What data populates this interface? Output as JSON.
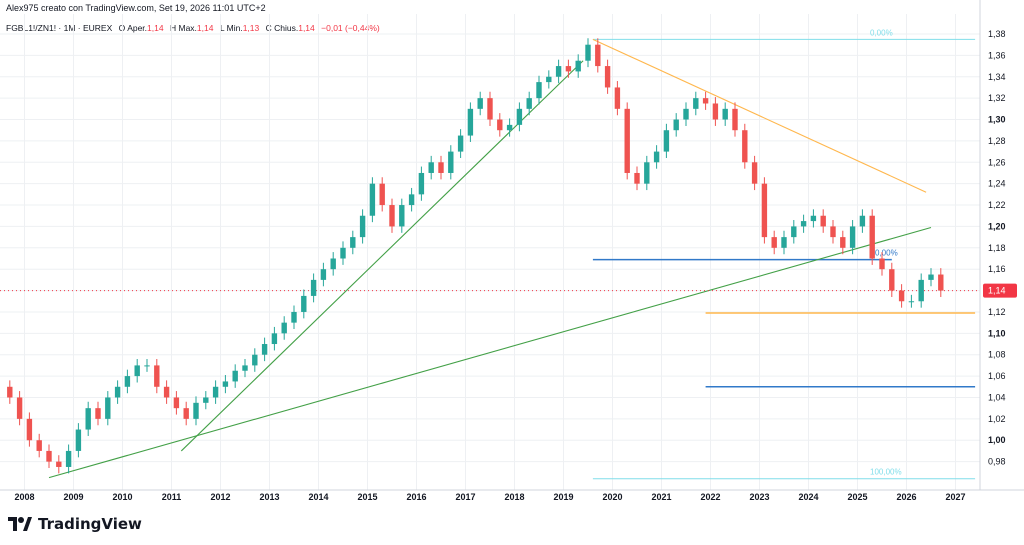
{
  "header": {
    "caption": "Alex975 creato con TradingView.com, Set 19, 2026 11:01 UTC+2"
  },
  "symbol": {
    "name": "FGBL1!/ZN1! · 1M · EUREX",
    "open_label": "O",
    "open_text": "Aper.",
    "open_value": "1,14",
    "high_label": "H",
    "high_text": "Max.",
    "high_value": "1,14",
    "low_label": "L",
    "low_text": "Min.",
    "low_value": "1,13",
    "close_label": "C",
    "close_text": "Chius.",
    "close_value": "1,14",
    "change": "−0,01 (−0,44%)"
  },
  "logo": {
    "text": "TradingView"
  },
  "colors": {
    "up": "#26a69a",
    "down": "#ef5350",
    "fib_top": "#80deea",
    "level": "#3179c9",
    "orange": "#ffb74d",
    "green": "#43a047",
    "price_tag": "#f23645",
    "grid": "#eef0f3"
  },
  "chart_data": {
    "type": "candlestick",
    "ylim": [
      0.96,
      1.38
    ],
    "y_ticks": [
      "1,38",
      "1,36",
      "1,34",
      "1,32",
      "1,30",
      "1,28",
      "1,26",
      "1,24",
      "1,22",
      "1,20",
      "1,18",
      "1,16",
      "1,14",
      "1,12",
      "1,10",
      "1,08",
      "1,06",
      "1,04",
      "1,02",
      "1,00",
      "0,98"
    ],
    "y_tick_values": [
      1.38,
      1.36,
      1.34,
      1.32,
      1.3,
      1.28,
      1.26,
      1.24,
      1.22,
      1.2,
      1.18,
      1.16,
      1.14,
      1.12,
      1.1,
      1.08,
      1.06,
      1.04,
      1.02,
      1.0,
      0.98
    ],
    "x_ticks": [
      "2008",
      "2009",
      "2010",
      "2011",
      "2012",
      "2013",
      "2014",
      "2015",
      "2016",
      "2017",
      "2018",
      "2019",
      "2020",
      "2021",
      "2022",
      "2023",
      "2024",
      "2025",
      "2026",
      "2027"
    ],
    "x_range": [
      2007.5,
      2027.5
    ],
    "last_price": "1,14",
    "last_value": 1.14,
    "series_close": [
      [
        2007.5,
        1.05
      ],
      [
        2007.7,
        1.04
      ],
      [
        2007.9,
        1.02
      ],
      [
        2008.1,
        1.0
      ],
      [
        2008.3,
        0.99
      ],
      [
        2008.5,
        0.98
      ],
      [
        2008.7,
        0.975
      ],
      [
        2008.9,
        0.99
      ],
      [
        2009.1,
        1.01
      ],
      [
        2009.3,
        1.03
      ],
      [
        2009.5,
        1.02
      ],
      [
        2009.7,
        1.04
      ],
      [
        2009.9,
        1.05
      ],
      [
        2010.1,
        1.06
      ],
      [
        2010.3,
        1.07
      ],
      [
        2010.5,
        1.07
      ],
      [
        2010.7,
        1.05
      ],
      [
        2010.9,
        1.04
      ],
      [
        2011.1,
        1.03
      ],
      [
        2011.3,
        1.02
      ],
      [
        2011.5,
        1.035
      ],
      [
        2011.7,
        1.04
      ],
      [
        2011.9,
        1.05
      ],
      [
        2012.1,
        1.055
      ],
      [
        2012.3,
        1.065
      ],
      [
        2012.5,
        1.07
      ],
      [
        2012.7,
        1.08
      ],
      [
        2012.9,
        1.09
      ],
      [
        2013.1,
        1.1
      ],
      [
        2013.3,
        1.11
      ],
      [
        2013.5,
        1.12
      ],
      [
        2013.7,
        1.135
      ],
      [
        2013.9,
        1.15
      ],
      [
        2014.1,
        1.16
      ],
      [
        2014.3,
        1.17
      ],
      [
        2014.5,
        1.18
      ],
      [
        2014.7,
        1.19
      ],
      [
        2014.9,
        1.21
      ],
      [
        2015.1,
        1.24
      ],
      [
        2015.3,
        1.22
      ],
      [
        2015.5,
        1.2
      ],
      [
        2015.7,
        1.22
      ],
      [
        2015.9,
        1.23
      ],
      [
        2016.1,
        1.25
      ],
      [
        2016.3,
        1.26
      ],
      [
        2016.5,
        1.25
      ],
      [
        2016.7,
        1.27
      ],
      [
        2016.9,
        1.285
      ],
      [
        2017.1,
        1.31
      ],
      [
        2017.3,
        1.32
      ],
      [
        2017.5,
        1.3
      ],
      [
        2017.7,
        1.29
      ],
      [
        2017.9,
        1.295
      ],
      [
        2018.1,
        1.31
      ],
      [
        2018.3,
        1.32
      ],
      [
        2018.5,
        1.335
      ],
      [
        2018.7,
        1.34
      ],
      [
        2018.9,
        1.35
      ],
      [
        2019.1,
        1.345
      ],
      [
        2019.3,
        1.355
      ],
      [
        2019.5,
        1.37
      ],
      [
        2019.7,
        1.35
      ],
      [
        2019.9,
        1.33
      ],
      [
        2020.1,
        1.31
      ],
      [
        2020.3,
        1.25
      ],
      [
        2020.5,
        1.24
      ],
      [
        2020.7,
        1.26
      ],
      [
        2020.9,
        1.27
      ],
      [
        2021.1,
        1.29
      ],
      [
        2021.3,
        1.3
      ],
      [
        2021.5,
        1.31
      ],
      [
        2021.7,
        1.32
      ],
      [
        2021.9,
        1.315
      ],
      [
        2022.1,
        1.3
      ],
      [
        2022.3,
        1.31
      ],
      [
        2022.5,
        1.29
      ],
      [
        2022.7,
        1.26
      ],
      [
        2022.9,
        1.24
      ],
      [
        2023.1,
        1.19
      ],
      [
        2023.3,
        1.18
      ],
      [
        2023.5,
        1.19
      ],
      [
        2023.7,
        1.2
      ],
      [
        2023.9,
        1.205
      ],
      [
        2024.1,
        1.21
      ],
      [
        2024.3,
        1.2
      ],
      [
        2024.5,
        1.19
      ],
      [
        2024.7,
        1.18
      ],
      [
        2024.9,
        1.2
      ],
      [
        2025.1,
        1.21
      ],
      [
        2025.3,
        1.17
      ],
      [
        2025.5,
        1.16
      ],
      [
        2025.7,
        1.14
      ],
      [
        2025.9,
        1.13
      ],
      [
        2026.1,
        1.13
      ],
      [
        2026.3,
        1.15
      ],
      [
        2026.5,
        1.155
      ],
      [
        2026.7,
        1.14
      ]
    ],
    "annotations": [
      {
        "label": "0,00%",
        "kind": "fib-top",
        "y": 1.375,
        "x": [
          2019.6,
          2027.4
        ]
      },
      {
        "label": "100,00%",
        "kind": "fib-bottom",
        "y": 0.964,
        "x": [
          2019.6,
          2027.4
        ]
      },
      {
        "label": "0,00%",
        "kind": "level",
        "y": 1.169,
        "x": [
          2019.6,
          2025.7
        ]
      },
      {
        "label": "",
        "kind": "orange-level",
        "y": 1.119,
        "x": [
          2021.9,
          2027.4
        ]
      },
      {
        "label": "",
        "kind": "level",
        "y": 1.05,
        "x": [
          2021.9,
          2027.4
        ]
      }
    ],
    "trendlines": [
      {
        "color": "green",
        "from": [
          2008.5,
          0.965
        ],
        "to": [
          2026.5,
          1.199
        ]
      },
      {
        "color": "green",
        "from": [
          2011.2,
          0.99
        ],
        "to": [
          2019.4,
          1.355
        ]
      },
      {
        "color": "orange",
        "from": [
          2019.6,
          1.375
        ],
        "to": [
          2026.4,
          1.232
        ]
      }
    ]
  }
}
